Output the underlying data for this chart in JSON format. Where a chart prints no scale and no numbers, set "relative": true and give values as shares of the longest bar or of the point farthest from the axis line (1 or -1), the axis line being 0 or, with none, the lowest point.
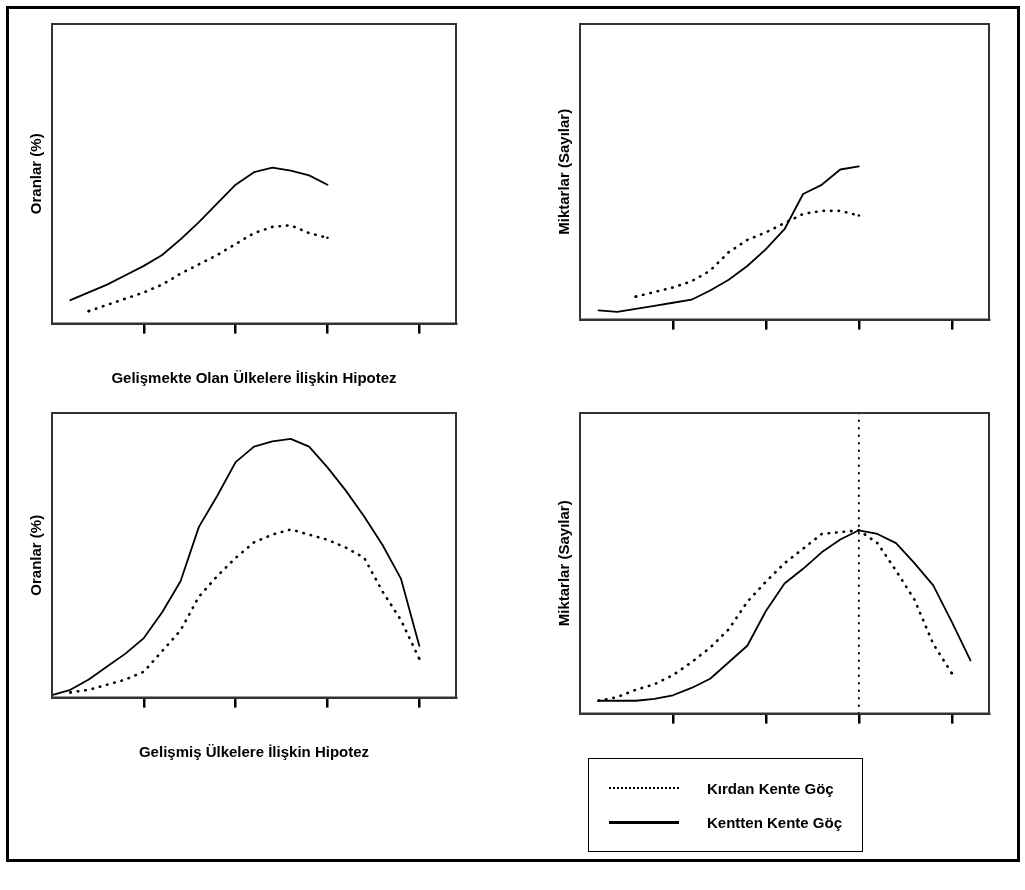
{
  "chart_data": [
    {
      "type": "line",
      "relative": true,
      "xlabel": "Gelişmekte Olan Ülkelere İlişkin Hipotez",
      "ylabel": "Oranlar (%)",
      "categories": [
        null,
        null,
        null,
        null,
        null,
        null,
        null,
        null,
        null,
        null,
        null,
        null,
        null,
        null,
        null,
        null,
        null,
        null,
        null,
        null,
        null,
        null,
        null
      ],
      "grid": false,
      "legend": false,
      "marker": "none",
      "series": [
        {
          "color": "#000000",
          "line_style": "solid",
          "values": [
            null,
            0.15,
            0.2,
            0.25,
            0.31,
            0.37,
            0.44,
            0.54,
            0.65,
            0.77,
            0.89,
            0.97,
            1,
            0.98,
            0.95,
            0.89,
            null,
            null,
            null,
            null,
            null,
            null,
            null
          ]
        },
        {
          "color": "#000000",
          "line_style": "dotted",
          "values": [
            null,
            null,
            0.08,
            0.12,
            0.16,
            0.2,
            0.25,
            0.32,
            0.38,
            0.44,
            0.51,
            0.58,
            0.62,
            0.63,
            0.58,
            0.55,
            null,
            null,
            null,
            null,
            null,
            null,
            null
          ]
        }
      ]
    },
    {
      "type": "line",
      "relative": true,
      "ylabel": "Miktarlar (Sayılar)",
      "categories": [
        null,
        null,
        null,
        null,
        null,
        null,
        null,
        null,
        null,
        null,
        null,
        null,
        null,
        null,
        null,
        null,
        null,
        null,
        null,
        null,
        null,
        null,
        null
      ],
      "grid": false,
      "legend": false,
      "marker": "none",
      "series": [
        {
          "color": "#000000",
          "line_style": "solid",
          "values": [
            null,
            0.06,
            0.05,
            0.07,
            0.09,
            0.11,
            0.13,
            0.19,
            0.26,
            0.35,
            0.46,
            0.59,
            0.82,
            0.88,
            0.98,
            1,
            null,
            null,
            null,
            null,
            null,
            null,
            null
          ]
        },
        {
          "color": "#000000",
          "line_style": "dotted",
          "values": [
            null,
            null,
            null,
            0.15,
            0.18,
            0.21,
            0.25,
            0.32,
            0.44,
            0.52,
            0.57,
            0.63,
            0.69,
            0.71,
            0.71,
            0.68,
            null,
            null,
            null,
            null,
            null,
            null,
            null
          ]
        }
      ]
    },
    {
      "type": "line",
      "relative": true,
      "xlabel": "Gelişmiş Ülkelere İlişkin Hipotez",
      "ylabel": "Oranlar (%)",
      "categories": [
        null,
        null,
        null,
        null,
        null,
        null,
        null,
        null,
        null,
        null,
        null,
        null,
        null,
        null,
        null,
        null,
        null,
        null,
        null,
        null,
        null,
        null,
        null
      ],
      "grid": false,
      "legend": false,
      "marker": "none",
      "series": [
        {
          "color": "#000000",
          "line_style": "solid",
          "values": [
            0.01,
            0.03,
            0.07,
            0.12,
            0.17,
            0.23,
            0.33,
            0.45,
            0.66,
            0.78,
            0.91,
            0.97,
            0.99,
            1,
            0.97,
            0.89,
            0.8,
            0.7,
            0.59,
            0.46,
            0.2,
            null,
            null
          ]
        },
        {
          "color": "#000000",
          "line_style": "dotted",
          "values": [
            null,
            0.02,
            0.03,
            0.05,
            0.07,
            0.1,
            0.18,
            0.26,
            0.39,
            0.47,
            0.54,
            0.6,
            0.63,
            0.65,
            0.63,
            0.61,
            0.58,
            0.54,
            0.41,
            0.3,
            0.15,
            null,
            null
          ]
        }
      ]
    },
    {
      "type": "line",
      "relative": true,
      "ylabel": "Miktarlar (Sayılar)",
      "categories": [
        null,
        null,
        null,
        null,
        null,
        null,
        null,
        null,
        null,
        null,
        null,
        null,
        null,
        null,
        null,
        null,
        null,
        null,
        null,
        null,
        null,
        null,
        null
      ],
      "grid": false,
      "legend": "bottom",
      "marker": "none",
      "ref_lines": [
        {
          "axis": "x",
          "line_style": "dotted",
          "color": "#000000"
        }
      ],
      "series": [
        {
          "name": "Kırdan Kente Göç",
          "color": "#000000",
          "line_style": "dotted",
          "values": [
            null,
            0.07,
            0.09,
            0.13,
            0.16,
            0.21,
            0.28,
            0.36,
            0.46,
            0.61,
            0.72,
            0.82,
            0.9,
            0.98,
            0.99,
            1,
            0.93,
            0.78,
            0.62,
            0.38,
            0.22,
            null,
            null
          ]
        },
        {
          "name": "Kentten Kente Göç",
          "color": "#000000",
          "line_style": "solid",
          "values": [
            null,
            0.07,
            0.07,
            0.07,
            0.08,
            0.1,
            0.14,
            0.19,
            0.28,
            0.37,
            0.56,
            0.71,
            0.79,
            0.88,
            0.95,
            1,
            0.98,
            0.93,
            0.82,
            0.7,
            0.5,
            0.29,
            null
          ]
        }
      ]
    }
  ]
}
